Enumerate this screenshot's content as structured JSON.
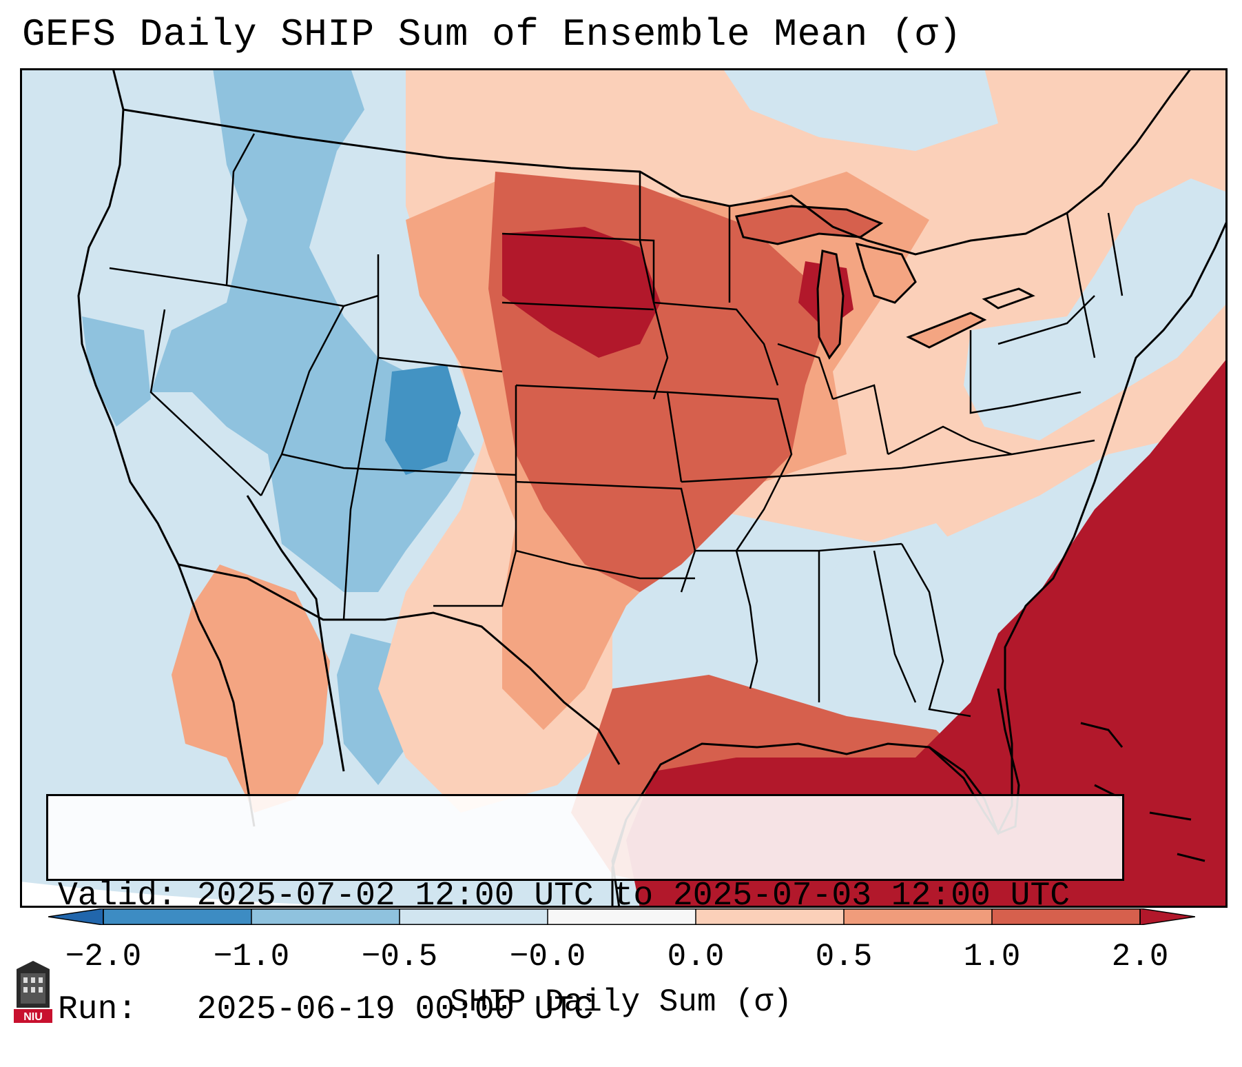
{
  "title": "GEFS Daily SHIP Sum of Ensemble Mean (σ)",
  "info": {
    "valid_label": "Valid:",
    "valid_value": "2025-07-02 12:00 UTC to 2025-07-03 12:00 UTC",
    "run_label": "Run:",
    "run_value": "2025-06-19 00:00 UTC"
  },
  "colorbar": {
    "label": "SHIP Daily Sum (σ)",
    "ticks": [
      "−2.0",
      "−1.0",
      "−0.5",
      "−0.0",
      "0.0",
      "0.5",
      "1.0",
      "2.0"
    ],
    "colors": [
      "#3d8cc3",
      "#8fc2de",
      "#d1e5f0",
      "#f7f7f7",
      "#fbd0b9",
      "#f09c7b",
      "#d6604d",
      "#b2182b"
    ],
    "extend_colors": {
      "low": "#2166ac",
      "high": "#b2182b"
    }
  },
  "map": {
    "ocean_color": "#d1e5f0",
    "border_color": "#000000"
  },
  "logo": {
    "text": "NIU",
    "color": "#c8102e"
  }
}
